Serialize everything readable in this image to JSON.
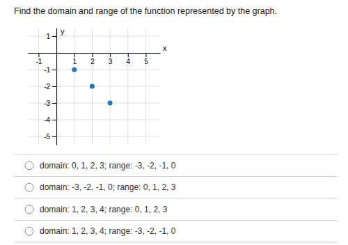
{
  "chart_data": {
    "type": "scatter",
    "title": "Find the domain and range of the function represented by the graph.",
    "x": [
      1,
      2,
      3
    ],
    "values": [
      -1,
      -2,
      -3
    ],
    "xlim": [
      -1.6,
      5.8
    ],
    "ylim": [
      -5.5,
      1.5
    ],
    "xticks": [
      -1,
      1,
      2,
      3,
      4,
      5
    ],
    "yticks": [
      -5,
      -4,
      -3,
      -2,
      -1,
      1
    ],
    "xlabel": "x",
    "ylabel": "y",
    "grid": true,
    "annotations": [
      "domain: 0, 1, 2, 3;  range: -3, -2, -1, 0",
      "domain: -3, -2, -1, 0;  range: 0, 1, 2, 3",
      "domain: 1, 2, 3, 4;  range: 0, 1, 2, 3",
      "domain: 1, 2, 3, 4;  range: -3, -2, -1, 0"
    ]
  }
}
